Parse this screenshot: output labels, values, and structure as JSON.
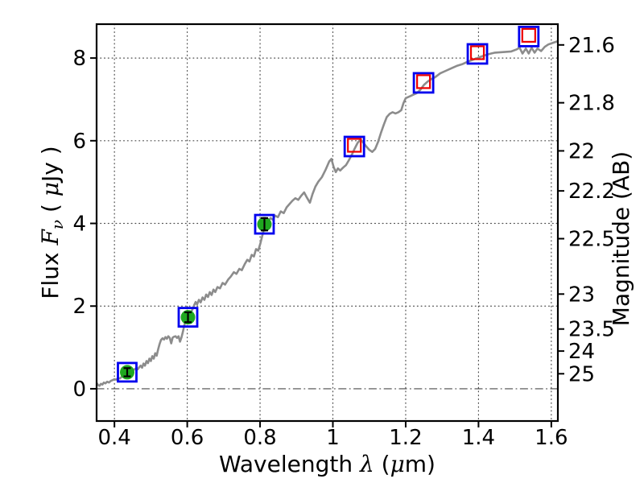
{
  "figure": {
    "background": "#ffffff",
    "description": "SED plot: observed spectrum with photometric points, flux vs wavelength, AB magnitude on right axis"
  },
  "chart_data": {
    "type": "line",
    "title": "",
    "xlabel": "Wavelength  λ (μm)",
    "xlabel_segments": [
      {
        "t": "Wavelength  ",
        "style": "plain"
      },
      {
        "t": "λ",
        "style": "math"
      },
      {
        "t": " (",
        "style": "plain"
      },
      {
        "t": "μ",
        "style": "math"
      },
      {
        "t": "m)",
        "style": "plain"
      }
    ],
    "ylabel_left": "Flux  Fν  ( μJy )",
    "ylabel_left_segments": [
      {
        "t": "Flux  ",
        "style": "plain"
      },
      {
        "t": "F",
        "style": "math"
      },
      {
        "t": "ν",
        "style": "math-sub"
      },
      {
        "t": "  ( ",
        "style": "plain"
      },
      {
        "t": "μ",
        "style": "math"
      },
      {
        "t": "Jy )",
        "style": "plain"
      }
    ],
    "ylabel_right": "Magnitude (AB)",
    "x_range": [
      0.351,
      1.618
    ],
    "y_range": [
      -0.78,
      8.82
    ],
    "grid": true,
    "legend": "none",
    "x_ticks": [
      {
        "value": 0.4,
        "label": "0.4"
      },
      {
        "value": 0.6,
        "label": "0.6"
      },
      {
        "value": 0.8,
        "label": "0.8"
      },
      {
        "value": 1.0,
        "label": "1"
      },
      {
        "value": 1.2,
        "label": "1.2"
      },
      {
        "value": 1.4,
        "label": "1.4"
      },
      {
        "value": 1.6,
        "label": "1.6"
      }
    ],
    "y_ticks_left": [
      {
        "value": 0,
        "label": "0"
      },
      {
        "value": 2,
        "label": "2"
      },
      {
        "value": 4,
        "label": "4"
      },
      {
        "value": 6,
        "label": "6"
      },
      {
        "value": 8,
        "label": "8"
      }
    ],
    "y_ticks_right_mag": [
      {
        "mag": 21.6,
        "label": "21.6"
      },
      {
        "mag": 21.8,
        "label": "21.8"
      },
      {
        "mag": 22.0,
        "label": "22"
      },
      {
        "mag": 22.2,
        "label": "22.2"
      },
      {
        "mag": 22.5,
        "label": "22.5"
      },
      {
        "mag": 23.0,
        "label": "23"
      },
      {
        "mag": 23.5,
        "label": "23.5"
      },
      {
        "mag": 24.0,
        "label": "24"
      },
      {
        "mag": 25.0,
        "label": "25"
      }
    ],
    "ab_zero_point": 23.9,
    "colors": {
      "spectrum": "#8c8c8c",
      "marker_square_blue": "#0000ee",
      "marker_circle_green": "#1fa81f",
      "marker_square_red": "#ee0000",
      "errorbar": "#000000",
      "grid": "#4a4a4a",
      "axis": "#000000"
    },
    "series": [
      {
        "name": "observed-spectrum",
        "type": "line",
        "points": [
          [
            0.351,
            0.14
          ],
          [
            0.355,
            0.09
          ],
          [
            0.359,
            0.07
          ],
          [
            0.363,
            0.12
          ],
          [
            0.367,
            0.1
          ],
          [
            0.371,
            0.15
          ],
          [
            0.375,
            0.13
          ],
          [
            0.38,
            0.17
          ],
          [
            0.385,
            0.15
          ],
          [
            0.39,
            0.19
          ],
          [
            0.395,
            0.21
          ],
          [
            0.4,
            0.23
          ],
          [
            0.405,
            0.22
          ],
          [
            0.41,
            0.26
          ],
          [
            0.415,
            0.25
          ],
          [
            0.42,
            0.29
          ],
          [
            0.425,
            0.31
          ],
          [
            0.43,
            0.34
          ],
          [
            0.435,
            0.37
          ],
          [
            0.44,
            0.4
          ],
          [
            0.445,
            0.42
          ],
          [
            0.45,
            0.44
          ],
          [
            0.455,
            0.47
          ],
          [
            0.46,
            0.5
          ],
          [
            0.464,
            0.47
          ],
          [
            0.468,
            0.52
          ],
          [
            0.472,
            0.56
          ],
          [
            0.476,
            0.51
          ],
          [
            0.48,
            0.61
          ],
          [
            0.484,
            0.56
          ],
          [
            0.488,
            0.67
          ],
          [
            0.492,
            0.62
          ],
          [
            0.496,
            0.73
          ],
          [
            0.5,
            0.67
          ],
          [
            0.504,
            0.79
          ],
          [
            0.508,
            0.73
          ],
          [
            0.512,
            0.86
          ],
          [
            0.516,
            0.8
          ],
          [
            0.52,
            0.95
          ],
          [
            0.524,
            1.08
          ],
          [
            0.528,
            1.18
          ],
          [
            0.532,
            1.22
          ],
          [
            0.536,
            1.19
          ],
          [
            0.54,
            1.25
          ],
          [
            0.544,
            1.21
          ],
          [
            0.548,
            1.27
          ],
          [
            0.552,
            1.23
          ],
          [
            0.556,
            1.1
          ],
          [
            0.56,
            1.24
          ],
          [
            0.564,
            1.26
          ],
          [
            0.568,
            1.27
          ],
          [
            0.572,
            1.23
          ],
          [
            0.576,
            1.27
          ],
          [
            0.58,
            1.14
          ],
          [
            0.584,
            1.24
          ],
          [
            0.588,
            1.38
          ],
          [
            0.592,
            1.54
          ],
          [
            0.596,
            1.65
          ],
          [
            0.6,
            1.72
          ],
          [
            0.605,
            1.78
          ],
          [
            0.61,
            1.85
          ],
          [
            0.615,
            1.93
          ],
          [
            0.619,
            2.02
          ],
          [
            0.623,
            2.1
          ],
          [
            0.627,
            2.04
          ],
          [
            0.632,
            2.15
          ],
          [
            0.637,
            2.09
          ],
          [
            0.642,
            2.21
          ],
          [
            0.647,
            2.15
          ],
          [
            0.652,
            2.28
          ],
          [
            0.657,
            2.22
          ],
          [
            0.662,
            2.34
          ],
          [
            0.667,
            2.27
          ],
          [
            0.672,
            2.4
          ],
          [
            0.677,
            2.34
          ],
          [
            0.683,
            2.46
          ],
          [
            0.69,
            2.43
          ],
          [
            0.697,
            2.56
          ],
          [
            0.704,
            2.52
          ],
          [
            0.712,
            2.64
          ],
          [
            0.72,
            2.72
          ],
          [
            0.728,
            2.82
          ],
          [
            0.735,
            2.78
          ],
          [
            0.743,
            2.9
          ],
          [
            0.75,
            2.87
          ],
          [
            0.758,
            3.02
          ],
          [
            0.765,
            3.12
          ],
          [
            0.771,
            3.08
          ],
          [
            0.777,
            3.24
          ],
          [
            0.783,
            3.2
          ],
          [
            0.789,
            3.38
          ],
          [
            0.795,
            3.34
          ],
          [
            0.801,
            3.52
          ],
          [
            0.806,
            3.7
          ],
          [
            0.812,
            3.9
          ],
          [
            0.817,
            3.99
          ],
          [
            0.823,
            4.07
          ],
          [
            0.829,
            4.13
          ],
          [
            0.835,
            4.09
          ],
          [
            0.841,
            4.19
          ],
          [
            0.849,
            4.15
          ],
          [
            0.857,
            4.29
          ],
          [
            0.865,
            4.25
          ],
          [
            0.873,
            4.39
          ],
          [
            0.881,
            4.47
          ],
          [
            0.889,
            4.55
          ],
          [
            0.897,
            4.61
          ],
          [
            0.905,
            4.57
          ],
          [
            0.913,
            4.67
          ],
          [
            0.921,
            4.75
          ],
          [
            0.929,
            4.62
          ],
          [
            0.937,
            4.5
          ],
          [
            0.944,
            4.71
          ],
          [
            0.952,
            4.89
          ],
          [
            0.96,
            5.01
          ],
          [
            0.97,
            5.12
          ],
          [
            0.98,
            5.3
          ],
          [
            0.99,
            5.5
          ],
          [
            0.996,
            5.56
          ],
          [
            1.002,
            5.37
          ],
          [
            1.008,
            5.24
          ],
          [
            1.014,
            5.33
          ],
          [
            1.02,
            5.28
          ],
          [
            1.028,
            5.35
          ],
          [
            1.036,
            5.41
          ],
          [
            1.044,
            5.53
          ],
          [
            1.052,
            5.66
          ],
          [
            1.06,
            5.81
          ],
          [
            1.068,
            5.95
          ],
          [
            1.076,
            6.03
          ],
          [
            1.084,
            5.95
          ],
          [
            1.092,
            5.86
          ],
          [
            1.1,
            5.78
          ],
          [
            1.108,
            5.73
          ],
          [
            1.116,
            5.8
          ],
          [
            1.124,
            5.97
          ],
          [
            1.132,
            6.19
          ],
          [
            1.14,
            6.39
          ],
          [
            1.148,
            6.57
          ],
          [
            1.156,
            6.65
          ],
          [
            1.164,
            6.69
          ],
          [
            1.172,
            6.66
          ],
          [
            1.18,
            6.69
          ],
          [
            1.188,
            6.74
          ],
          [
            1.194,
            6.91
          ],
          [
            1.2,
            7.03
          ],
          [
            1.21,
            7.07
          ],
          [
            1.22,
            7.11
          ],
          [
            1.23,
            7.15
          ],
          [
            1.24,
            7.23
          ],
          [
            1.25,
            7.35
          ],
          [
            1.26,
            7.43
          ],
          [
            1.27,
            7.49
          ],
          [
            1.28,
            7.53
          ],
          [
            1.295,
            7.63
          ],
          [
            1.31,
            7.69
          ],
          [
            1.325,
            7.75
          ],
          [
            1.34,
            7.81
          ],
          [
            1.355,
            7.85
          ],
          [
            1.37,
            7.91
          ],
          [
            1.385,
            7.96
          ],
          [
            1.4,
            8.01
          ],
          [
            1.415,
            8.06
          ],
          [
            1.43,
            8.1
          ],
          [
            1.445,
            8.13
          ],
          [
            1.46,
            8.14
          ],
          [
            1.475,
            8.15
          ],
          [
            1.49,
            8.16
          ],
          [
            1.505,
            8.21
          ],
          [
            1.513,
            8.25
          ],
          [
            1.521,
            8.11
          ],
          [
            1.53,
            8.23
          ],
          [
            1.538,
            8.11
          ],
          [
            1.546,
            8.25
          ],
          [
            1.554,
            8.13
          ],
          [
            1.562,
            8.23
          ],
          [
            1.572,
            8.17
          ],
          [
            1.582,
            8.27
          ],
          [
            1.592,
            8.33
          ],
          [
            1.605,
            8.37
          ],
          [
            1.618,
            8.41
          ]
        ]
      },
      {
        "name": "photometry-detected",
        "type": "scatter",
        "marker": "green-circle-in-blue-square-with-errorbar",
        "points": [
          {
            "wavelength": 0.435,
            "flux": 0.4,
            "err": 0.1
          },
          {
            "wavelength": 0.602,
            "flux": 1.73,
            "err": 0.12
          },
          {
            "wavelength": 0.812,
            "flux": 3.98,
            "err": 0.15
          }
        ]
      },
      {
        "name": "photometry-predicted",
        "type": "scatter",
        "marker": "red-open-square-in-blue-open-square",
        "points": [
          {
            "wavelength": 1.059,
            "flux": 5.86
          },
          {
            "wavelength": 1.249,
            "flux": 7.4
          },
          {
            "wavelength": 1.397,
            "flux": 8.1
          },
          {
            "wavelength": 1.538,
            "flux": 8.52
          }
        ]
      }
    ]
  }
}
